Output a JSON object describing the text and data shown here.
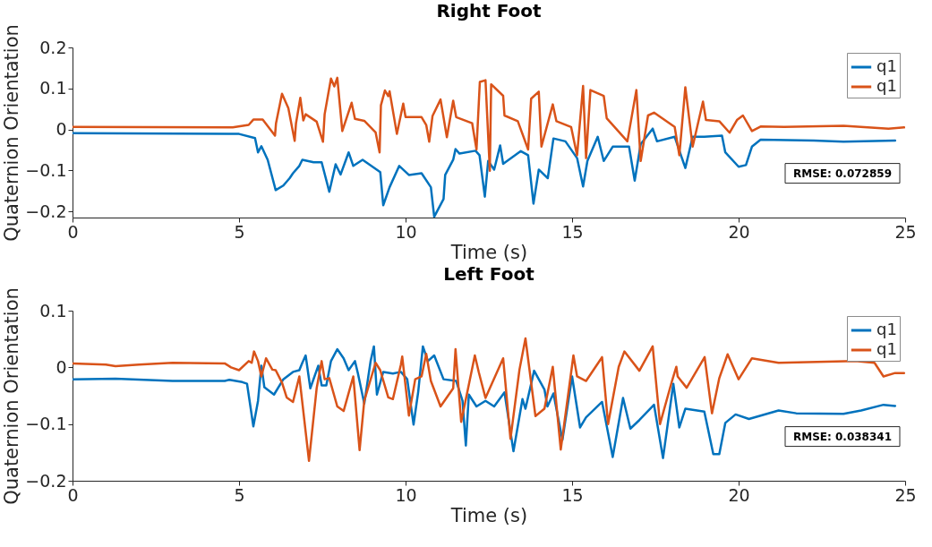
{
  "chart_data": [
    {
      "type": "line",
      "title": "Right Foot",
      "xlabel": "Time (s)",
      "ylabel": "Quaternion Orientation",
      "xlim": [
        0,
        25
      ],
      "xticks": [
        0,
        5,
        10,
        15,
        20,
        25
      ],
      "ylim": [
        -0.215,
        0.2
      ],
      "yticks": [
        -0.2,
        -0.1,
        0,
        0.1,
        0.2
      ],
      "legend": "top right",
      "annotations": [
        "RMSE: 0.072859"
      ],
      "series": [
        {
          "name": "q1",
          "color": "#0072bd",
          "x": [
            0,
            5.0,
            5.48,
            5.57,
            5.67,
            5.86,
            6.1,
            6.33,
            6.52,
            6.62,
            6.81,
            6.9,
            7.24,
            7.48,
            7.71,
            7.9,
            8.05,
            8.29,
            8.43,
            8.71,
            9.24,
            9.33,
            9.52,
            9.81,
            10.1,
            10.48,
            10.76,
            10.86,
            11.14,
            11.19,
            11.43,
            11.5,
            11.62,
            12.1,
            12.22,
            12.38,
            12.48,
            12.66,
            12.84,
            12.93,
            13.46,
            13.68,
            13.84,
            14.0,
            14.27,
            14.44,
            14.8,
            15.15,
            15.33,
            15.46,
            15.77,
            15.95,
            16.22,
            16.71,
            16.88,
            17.06,
            17.42,
            17.55,
            18.08,
            18.4,
            18.62,
            18.97,
            19.5,
            19.6,
            20.0,
            20.22,
            20.4,
            20.66,
            22.26,
            23.15,
            24.7
          ],
          "values": [
            -0.009,
            -0.011,
            -0.021,
            -0.056,
            -0.041,
            -0.074,
            -0.148,
            -0.137,
            -0.119,
            -0.107,
            -0.089,
            -0.074,
            -0.08,
            -0.08,
            -0.152,
            -0.085,
            -0.11,
            -0.056,
            -0.089,
            -0.074,
            -0.104,
            -0.185,
            -0.141,
            -0.089,
            -0.111,
            -0.107,
            -0.141,
            -0.213,
            -0.17,
            -0.111,
            -0.074,
            -0.048,
            -0.059,
            -0.052,
            -0.063,
            -0.164,
            -0.077,
            -0.098,
            -0.039,
            -0.084,
            -0.053,
            -0.063,
            -0.181,
            -0.098,
            -0.119,
            -0.022,
            -0.029,
            -0.07,
            -0.139,
            -0.077,
            -0.018,
            -0.077,
            -0.042,
            -0.042,
            -0.125,
            -0.036,
            0.002,
            -0.029,
            -0.018,
            -0.094,
            -0.018,
            -0.018,
            -0.015,
            -0.056,
            -0.091,
            -0.087,
            -0.042,
            -0.025,
            -0.027,
            -0.03,
            -0.027
          ]
        },
        {
          "name": "q1",
          "color": "#d95319",
          "x": [
            0,
            4.81,
            5.29,
            5.43,
            5.71,
            6.08,
            6.11,
            6.29,
            6.48,
            6.67,
            6.71,
            6.84,
            6.93,
            7.0,
            7.33,
            7.52,
            7.57,
            7.76,
            7.86,
            7.95,
            8.1,
            8.38,
            8.48,
            8.76,
            9.1,
            9.22,
            9.26,
            9.38,
            9.48,
            9.52,
            9.74,
            9.93,
            10.0,
            10.48,
            10.62,
            10.71,
            10.81,
            11.05,
            11.24,
            11.43,
            11.52,
            12.0,
            12.13,
            12.23,
            12.4,
            12.53,
            12.57,
            12.93,
            12.97,
            13.37,
            13.68,
            13.77,
            14.0,
            14.08,
            14.42,
            14.53,
            14.97,
            15.15,
            15.33,
            15.42,
            15.55,
            15.95,
            16.04,
            16.66,
            16.93,
            17.06,
            17.28,
            17.46,
            18.08,
            18.22,
            18.4,
            18.62,
            18.93,
            19.02,
            19.42,
            19.73,
            19.95,
            20.13,
            20.4,
            20.66,
            21.37,
            23.15,
            24.5,
            24.97
          ],
          "values": [
            0.006,
            0.005,
            0.011,
            0.024,
            0.024,
            -0.015,
            0.015,
            0.087,
            0.052,
            -0.028,
            0.015,
            0.077,
            0.022,
            0.037,
            0.019,
            -0.03,
            0.037,
            0.124,
            0.105,
            0.126,
            -0.004,
            0.065,
            0.026,
            0.021,
            -0.007,
            -0.056,
            0.059,
            0.095,
            0.081,
            0.093,
            -0.011,
            0.063,
            0.03,
            0.03,
            0.011,
            -0.03,
            0.033,
            0.073,
            -0.019,
            0.07,
            0.03,
            0.015,
            -0.049,
            0.116,
            0.12,
            -0.101,
            0.11,
            0.082,
            0.034,
            0.02,
            -0.049,
            0.075,
            0.092,
            -0.042,
            0.061,
            0.02,
            0.006,
            -0.063,
            0.106,
            -0.07,
            0.096,
            0.082,
            0.027,
            -0.029,
            0.096,
            -0.077,
            0.034,
            0.041,
            0.006,
            -0.063,
            0.103,
            -0.042,
            0.068,
            0.023,
            0.02,
            -0.008,
            0.023,
            0.034,
            -0.004,
            0.007,
            0.006,
            0.009,
            0.002,
            0.005
          ]
        }
      ]
    },
    {
      "type": "line",
      "title": "Left Foot",
      "xlabel": "Time (s)",
      "ylabel": "Quaternion Orientation",
      "xlim": [
        0,
        25
      ],
      "xticks": [
        0,
        5,
        10,
        15,
        20,
        25
      ],
      "ylim": [
        -0.2,
        0.1
      ],
      "yticks": [
        -0.2,
        -0.1,
        0,
        0.1
      ],
      "legend": "top right",
      "annotations": [
        "RMSE: 0.038341"
      ],
      "series": [
        {
          "name": "q1",
          "color": "#0072bd",
          "x": [
            0,
            1.29,
            3.0,
            4.57,
            4.71,
            5.1,
            5.24,
            5.43,
            5.57,
            5.67,
            5.76,
            6.05,
            6.33,
            6.62,
            6.81,
            6.9,
            7.0,
            7.14,
            7.38,
            7.48,
            7.62,
            7.76,
            7.95,
            8.14,
            8.29,
            8.48,
            8.57,
            8.76,
            8.95,
            9.05,
            9.14,
            9.33,
            9.62,
            9.86,
            10.05,
            10.24,
            10.38,
            10.52,
            10.67,
            10.86,
            11.14,
            11.52,
            11.71,
            11.81,
            11.9,
            12.13,
            12.4,
            12.66,
            12.97,
            13.24,
            13.51,
            13.6,
            13.86,
            14.17,
            14.26,
            14.44,
            14.71,
            15.0,
            15.24,
            15.42,
            15.9,
            16.22,
            16.53,
            16.75,
            17.02,
            17.46,
            17.73,
            18.04,
            18.22,
            18.4,
            18.97,
            19.24,
            19.42,
            19.6,
            19.91,
            20.31,
            21.2,
            21.73,
            23.15,
            23.68,
            24.35,
            24.7
          ],
          "values": [
            -0.021,
            -0.02,
            -0.024,
            -0.024,
            -0.022,
            -0.026,
            -0.029,
            -0.104,
            -0.059,
            0.003,
            -0.035,
            -0.048,
            -0.021,
            -0.008,
            -0.005,
            0.008,
            0.021,
            -0.037,
            0.003,
            -0.032,
            -0.032,
            0.011,
            0.032,
            0.016,
            -0.005,
            0.011,
            -0.011,
            -0.064,
            0.011,
            0.037,
            -0.048,
            -0.008,
            -0.011,
            -0.008,
            -0.021,
            -0.101,
            -0.043,
            0.037,
            0.011,
            0.021,
            -0.021,
            -0.024,
            -0.059,
            -0.138,
            -0.048,
            -0.069,
            -0.059,
            -0.069,
            -0.044,
            -0.148,
            -0.056,
            -0.073,
            -0.006,
            -0.039,
            -0.069,
            -0.046,
            -0.128,
            -0.016,
            -0.106,
            -0.088,
            -0.061,
            -0.158,
            -0.054,
            -0.108,
            -0.093,
            -0.066,
            -0.16,
            -0.029,
            -0.106,
            -0.073,
            -0.078,
            -0.153,
            -0.153,
            -0.098,
            -0.083,
            -0.091,
            -0.076,
            -0.081,
            -0.082,
            -0.076,
            -0.066,
            -0.068
          ]
        },
        {
          "name": "q1",
          "color": "#d95319",
          "x": [
            0,
            1.0,
            1.29,
            2.0,
            3.0,
            4.57,
            4.76,
            5.0,
            5.29,
            5.38,
            5.45,
            5.57,
            5.67,
            5.81,
            6.0,
            6.1,
            6.29,
            6.43,
            6.62,
            6.81,
            7.1,
            7.33,
            7.48,
            7.57,
            7.71,
            7.95,
            8.14,
            8.43,
            8.62,
            8.76,
            9.1,
            9.24,
            9.48,
            9.62,
            9.86,
            9.9,
            10.1,
            10.29,
            10.48,
            10.62,
            10.76,
            11.05,
            11.43,
            11.5,
            11.67,
            12.08,
            12.2,
            12.4,
            12.93,
            13.15,
            13.42,
            13.6,
            13.9,
            14.17,
            14.42,
            14.66,
            15.04,
            15.15,
            15.42,
            15.9,
            16.08,
            16.4,
            16.57,
            17.02,
            17.42,
            17.64,
            18.0,
            18.13,
            18.17,
            18.44,
            18.98,
            19.2,
            19.42,
            19.67,
            20.0,
            20.4,
            21.2,
            23.5,
            24.08,
            24.35,
            24.7,
            24.97
          ],
          "values": [
            0.007,
            0.005,
            0.002,
            0.005,
            0.008,
            0.007,
            0,
            -0.005,
            0.011,
            0.008,
            0.028,
            0.011,
            -0.016,
            0.016,
            -0.004,
            -0.005,
            -0.027,
            -0.053,
            -0.061,
            -0.016,
            -0.165,
            -0.037,
            0.011,
            -0.021,
            -0.019,
            -0.069,
            -0.077,
            -0.016,
            -0.146,
            -0.059,
            0.008,
            -0.005,
            -0.053,
            -0.056,
            0.005,
            0.019,
            -0.085,
            -0.021,
            -0.016,
            0.024,
            -0.024,
            -0.069,
            -0.037,
            0.032,
            -0.096,
            0.021,
            -0.009,
            -0.054,
            0.016,
            -0.126,
            -0.004,
            0.051,
            -0.086,
            -0.073,
            0.001,
            -0.145,
            0.021,
            -0.016,
            -0.024,
            0.018,
            -0.1,
            0.001,
            0.028,
            -0.006,
            0.037,
            -0.1,
            -0.024,
            0.001,
            -0.016,
            -0.036,
            0.018,
            -0.081,
            -0.019,
            0.023,
            -0.021,
            0.016,
            0.008,
            0.011,
            0.008,
            -0.016,
            -0.01,
            -0.01
          ]
        }
      ]
    }
  ]
}
